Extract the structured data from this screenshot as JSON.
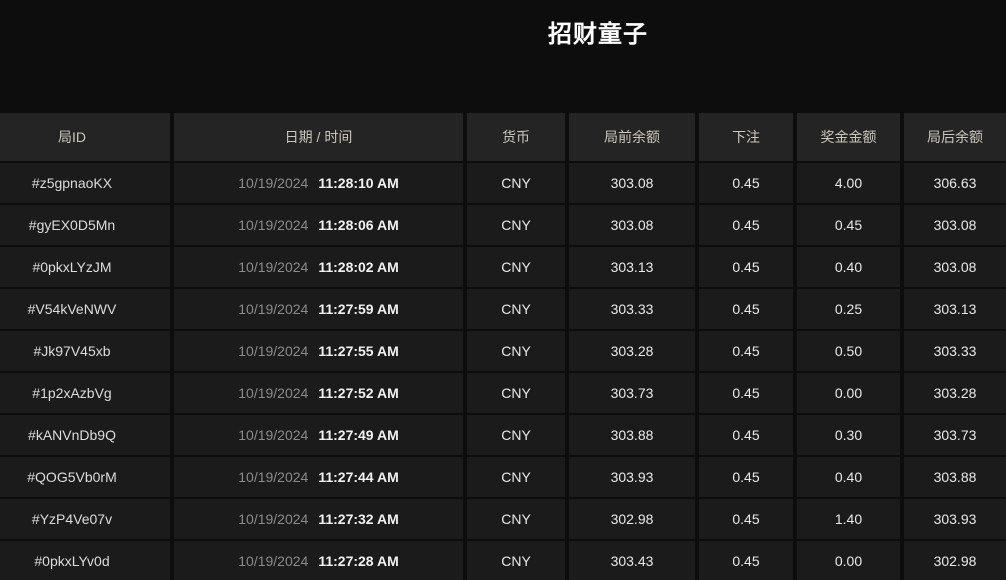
{
  "page": {
    "title": "招财童子"
  },
  "colors": {
    "page_background": "#0d0d0d",
    "header_background": "#242424",
    "row_background": "#1b1b1b",
    "header_text": "#cbc7ba",
    "date_text": "#8b8b8b",
    "primary_text": "#e9e9e9"
  },
  "table": {
    "columns": [
      {
        "key": "id",
        "label": "局ID"
      },
      {
        "key": "datetime",
        "label": "日期 / 时间"
      },
      {
        "key": "currency",
        "label": "货币"
      },
      {
        "key": "balance_before",
        "label": "局前余额"
      },
      {
        "key": "bet",
        "label": "下注"
      },
      {
        "key": "prize",
        "label": "奖金金额"
      },
      {
        "key": "balance_after",
        "label": "局后余额"
      }
    ],
    "rows": [
      {
        "id": "#z5gpnaoKX",
        "date": "10/19/2024",
        "time": "11:28:10 AM",
        "currency": "CNY",
        "balance_before": "303.08",
        "bet": "0.45",
        "prize": "4.00",
        "balance_after": "306.63"
      },
      {
        "id": "#gyEX0D5Mn",
        "date": "10/19/2024",
        "time": "11:28:06 AM",
        "currency": "CNY",
        "balance_before": "303.08",
        "bet": "0.45",
        "prize": "0.45",
        "balance_after": "303.08"
      },
      {
        "id": "#0pkxLYzJM",
        "date": "10/19/2024",
        "time": "11:28:02 AM",
        "currency": "CNY",
        "balance_before": "303.13",
        "bet": "0.45",
        "prize": "0.40",
        "balance_after": "303.08"
      },
      {
        "id": "#V54kVeNWV",
        "date": "10/19/2024",
        "time": "11:27:59 AM",
        "currency": "CNY",
        "balance_before": "303.33",
        "bet": "0.45",
        "prize": "0.25",
        "balance_after": "303.13"
      },
      {
        "id": "#Jk97V45xb",
        "date": "10/19/2024",
        "time": "11:27:55 AM",
        "currency": "CNY",
        "balance_before": "303.28",
        "bet": "0.45",
        "prize": "0.50",
        "balance_after": "303.33"
      },
      {
        "id": "#1p2xAzbVg",
        "date": "10/19/2024",
        "time": "11:27:52 AM",
        "currency": "CNY",
        "balance_before": "303.73",
        "bet": "0.45",
        "prize": "0.00",
        "balance_after": "303.28"
      },
      {
        "id": "#kANVnDb9Q",
        "date": "10/19/2024",
        "time": "11:27:49 AM",
        "currency": "CNY",
        "balance_before": "303.88",
        "bet": "0.45",
        "prize": "0.30",
        "balance_after": "303.73"
      },
      {
        "id": "#QOG5Vb0rM",
        "date": "10/19/2024",
        "time": "11:27:44 AM",
        "currency": "CNY",
        "balance_before": "303.93",
        "bet": "0.45",
        "prize": "0.40",
        "balance_after": "303.88"
      },
      {
        "id": "#YzP4Ve07v",
        "date": "10/19/2024",
        "time": "11:27:32 AM",
        "currency": "CNY",
        "balance_before": "302.98",
        "bet": "0.45",
        "prize": "1.40",
        "balance_after": "303.93"
      },
      {
        "id": "#0pkxLYv0d",
        "date": "10/19/2024",
        "time": "11:27:28 AM",
        "currency": "CNY",
        "balance_before": "303.43",
        "bet": "0.45",
        "prize": "0.00",
        "balance_after": "302.98"
      }
    ]
  }
}
